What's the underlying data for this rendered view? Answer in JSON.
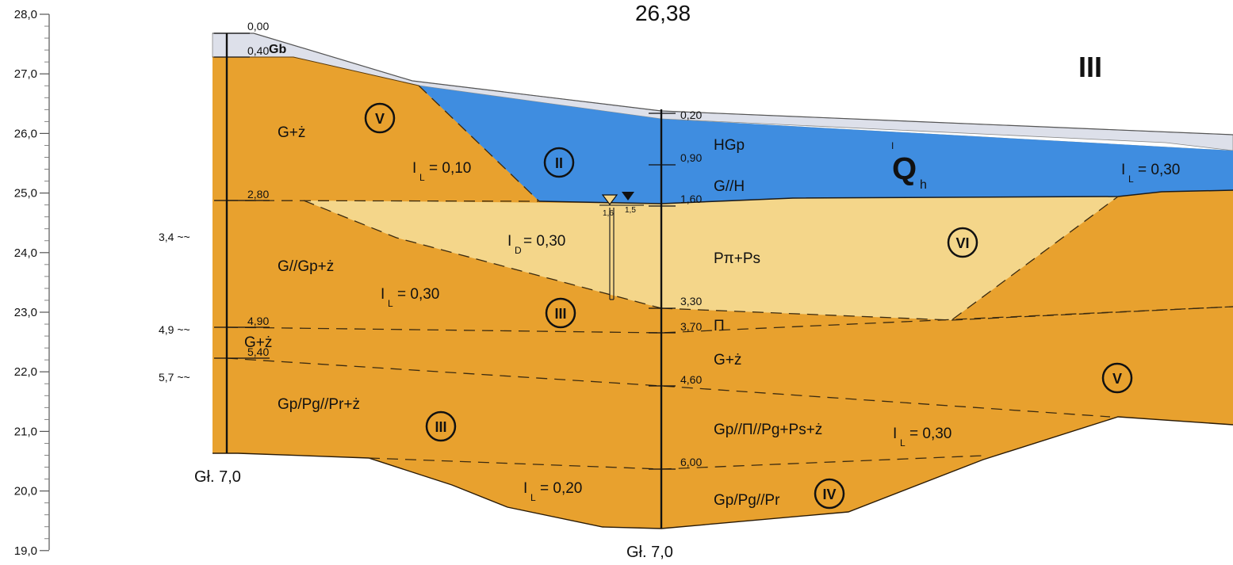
{
  "title_elevation": "26,38",
  "section_label": "III",
  "stratigraphy": {
    "Q": "Q",
    "super": "I",
    "sub": "h"
  },
  "axis": {
    "ticks": [
      "28,0",
      "27,0",
      "26,0",
      "25,0",
      "24,0",
      "23,0",
      "22,0",
      "21,0",
      "20,0",
      "19,0"
    ]
  },
  "colors": {
    "fill_layer": "#dde0ea",
    "clay_layer": "#e8a12e",
    "organic_layer": "#3f8de0",
    "sand_layer": "#f4d68a",
    "outline": "#1a1a1a"
  },
  "borehole_left": {
    "depths": [
      "0,00",
      "0,40",
      "2,80",
      "4,90",
      "5,40"
    ],
    "water_marks": [
      "3,4 ~~",
      "4,9 ~~",
      "5,7 ~~"
    ],
    "final_depth": "Gł. 7,0"
  },
  "borehole_right": {
    "depths": [
      "0,20",
      "0,90",
      "1,60",
      "3,30",
      "3,70",
      "4,60",
      "6,00"
    ],
    "final_depth": "Gł. 7,0"
  },
  "groundwater": {
    "left_level": "1,6",
    "right_level": "1,5"
  },
  "soil_labels": {
    "gb": "Gb",
    "g_z_top": "G+ż",
    "g_gp_z": "G//Gp+ż",
    "g_z_mid": "G+ż",
    "gp_pg_pr_z": "Gp/Pg//Pr+ż",
    "hgp": "HGp",
    "g_h": "G//H",
    "ppi_ps": "Pπ+Ps",
    "pi": "Π",
    "g_z_right": "G+ż",
    "gp_pi_pg_ps_z": "Gp//Π//Pg+Ps+ż",
    "gp_pg_pr": "Gp/Pg//Pr"
  },
  "params": {
    "il_010": {
      "sym": "I",
      "sub": "L",
      "val": "= 0,10"
    },
    "id_030": {
      "sym": "I",
      "sub": "D",
      "val": "= 0,30"
    },
    "il_030_left": {
      "sym": "I",
      "sub": "L",
      "val": "= 0,30"
    },
    "il_030_top_right": {
      "sym": "I",
      "sub": "L",
      "val": "= 0,30"
    },
    "il_030_mid_right": {
      "sym": "I",
      "sub": "L",
      "val": "= 0,30"
    },
    "il_020": {
      "sym": "I",
      "sub": "L",
      "val": "= 0,20"
    }
  },
  "geotech_layers": {
    "v_top": "V",
    "ii": "II",
    "iii_mid": "III",
    "vi": "VI",
    "v_right": "V",
    "iii_low": "III",
    "iv": "IV"
  }
}
